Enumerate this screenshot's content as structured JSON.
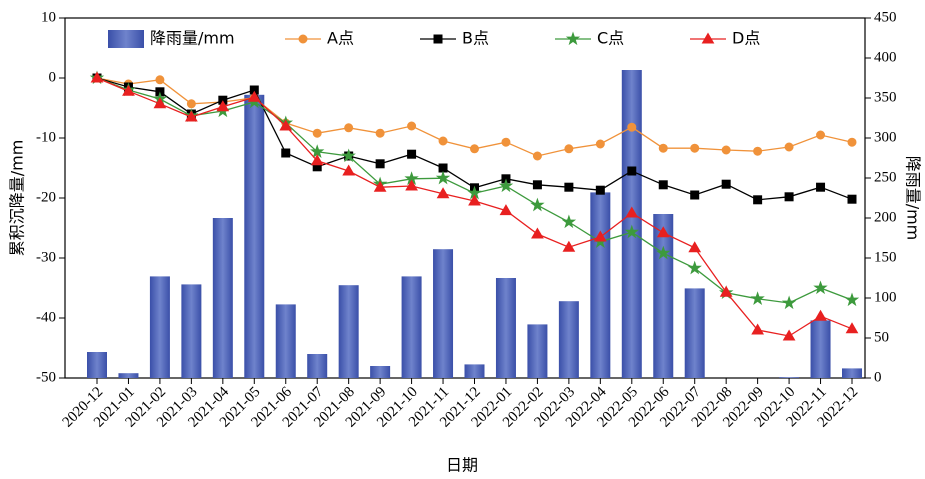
{
  "chart_data": {
    "type": "bar-line",
    "x_label": "日期",
    "y_label": "累积沉降量/mm",
    "y2_label": "降雨量/mm",
    "categories": [
      "2020-12",
      "2021-01",
      "2021-02",
      "2021-03",
      "2021-04",
      "2021-05",
      "2021-06",
      "2021-07",
      "2021-08",
      "2021-09",
      "2021-10",
      "2021-11",
      "2021-12",
      "2022-01",
      "2022-02",
      "2022-03",
      "2022-04",
      "2022-05",
      "2022-06",
      "2022-07",
      "2022-08",
      "2022-09",
      "2022-10",
      "2022-11",
      "2022-12"
    ],
    "ylim": [
      -50,
      10
    ],
    "yticks": [
      10,
      0,
      -10,
      -20,
      -30,
      -40,
      -50
    ],
    "y2lim": [
      0,
      450
    ],
    "y2ticks": [
      0,
      50,
      100,
      150,
      200,
      250,
      300,
      350,
      400,
      450
    ],
    "series": [
      {
        "name": "降雨量/mm",
        "type": "bar",
        "axis": "y2",
        "color": "#3a4fa8",
        "values": [
          32.5,
          6,
          127,
          117,
          200,
          354,
          92,
          30,
          116,
          15,
          127,
          161,
          17,
          125,
          67,
          96,
          232,
          385,
          205,
          112,
          0,
          0,
          1,
          72,
          12
        ]
      },
      {
        "name": "A点",
        "type": "line",
        "marker": "circle",
        "color": "#f0923a",
        "values": [
          0,
          -1,
          -0.3,
          -4.3,
          -4,
          -3.3,
          -7.5,
          -9.2,
          -8.3,
          -9.2,
          -8,
          -10.5,
          -11.8,
          -10.7,
          -13,
          -11.8,
          -11,
          -8.2,
          -11.7,
          -11.7,
          -12,
          -12.2,
          -11.5,
          -9.5,
          -10.7
        ]
      },
      {
        "name": "B点",
        "type": "line",
        "marker": "square",
        "color": "#000000",
        "values": [
          0,
          -1.5,
          -2.3,
          -6,
          -3.7,
          -2,
          -12.5,
          -14.8,
          -13,
          -14.3,
          -12.7,
          -15,
          -18.3,
          -16.8,
          -17.8,
          -18.2,
          -18.7,
          -15.5,
          -17.8,
          -19.5,
          -17.7,
          -20.3,
          -19.8,
          -18.2,
          -20.2
        ]
      },
      {
        "name": "C点",
        "type": "line",
        "marker": "star",
        "color": "#3d9a3d",
        "values": [
          0,
          -2,
          -3.5,
          -6.3,
          -5.5,
          -4,
          -7.5,
          -12.3,
          -13,
          -17.7,
          -16.8,
          -16.7,
          -19.2,
          -18,
          -21.2,
          -24,
          -27.3,
          -25.7,
          -29.2,
          -31.7,
          -35.8,
          -36.8,
          -37.5,
          -35,
          -37
        ]
      },
      {
        "name": "D点",
        "type": "line",
        "marker": "triangle",
        "color": "#e82020",
        "values": [
          0,
          -2.2,
          -4.3,
          -6.5,
          -4.8,
          -3.2,
          -8,
          -13.8,
          -15.5,
          -18.2,
          -18,
          -19.3,
          -20.5,
          -22.1,
          -26,
          -28.2,
          -26.5,
          -22.5,
          -25.8,
          -28.3,
          -35.7,
          -42,
          -43,
          -39.7,
          -41.8
        ]
      }
    ]
  }
}
